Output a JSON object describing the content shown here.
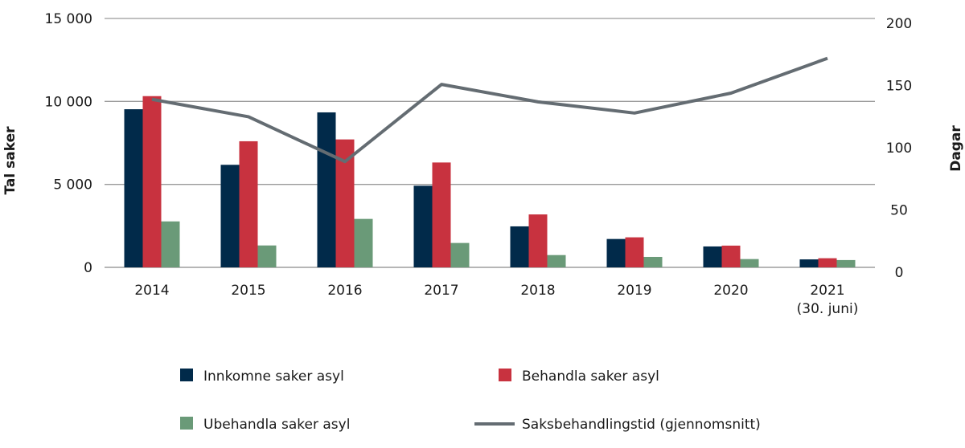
{
  "chart_data": {
    "type": "bar",
    "categories": [
      "2014",
      "2015",
      "2016",
      "2017",
      "2018",
      "2019",
      "2020",
      "2021 (30. juni)"
    ],
    "category_lines": [
      [
        "2014"
      ],
      [
        "2015"
      ],
      [
        "2016"
      ],
      [
        "2017"
      ],
      [
        "2018"
      ],
      [
        "2019"
      ],
      [
        "2020"
      ],
      [
        "2021",
        "(30. juni)"
      ]
    ],
    "ylabel": "Tal saker",
    "y2label": "Dagar",
    "ylim": [
      0,
      15000
    ],
    "y2lim": [
      0,
      200
    ],
    "yticks": [
      0,
      5000,
      10000,
      15000
    ],
    "ytick_labels": [
      "0",
      "5 000",
      "10 000",
      "15 000"
    ],
    "y2ticks": [
      0,
      50,
      100,
      150,
      200
    ],
    "y2tick_labels": [
      "0",
      "50",
      "100",
      "150",
      "200"
    ],
    "grid": true,
    "legend_position": "bottom",
    "series": [
      {
        "name": "Innkomne saker asyl",
        "type": "bar",
        "axis": "left",
        "color": "#012a4a",
        "values": [
          9530,
          6180,
          9340,
          4920,
          2470,
          1710,
          1260,
          480
        ]
      },
      {
        "name": "Behandla saker asyl",
        "type": "bar",
        "axis": "left",
        "color": "#c8323f",
        "values": [
          10320,
          7600,
          7710,
          6320,
          3190,
          1810,
          1310,
          550
        ]
      },
      {
        "name": "Ubehandla saker asyl",
        "type": "bar",
        "axis": "left",
        "color": "#6a9a78",
        "values": [
          2770,
          1320,
          2920,
          1470,
          740,
          630,
          500,
          440
        ]
      },
      {
        "name": "Saksbehandlingstid (gjennomsnitt)",
        "type": "line",
        "axis": "right",
        "color": "#646c72",
        "values": [
          135,
          121,
          85,
          147,
          133,
          124,
          140,
          168
        ]
      }
    ]
  }
}
